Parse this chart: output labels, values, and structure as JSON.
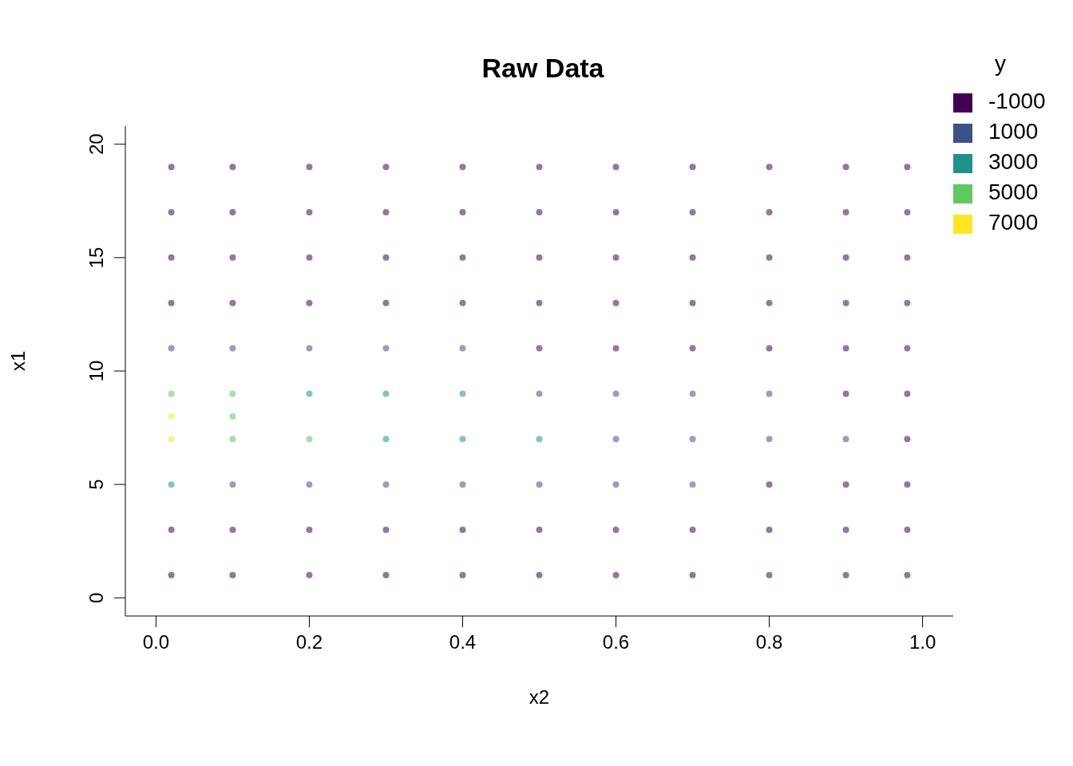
{
  "chart_data": {
    "type": "scatter",
    "title": "Raw Data",
    "xlabel": "x2",
    "ylabel": "x1",
    "legend_title": "y",
    "series": [
      {
        "name": "-1000",
        "color": "#440154",
        "x": [
          0.02,
          0.1,
          0.2,
          0.3,
          0.4,
          0.5,
          0.6,
          0.7,
          0.8,
          0.9,
          0.98,
          0.02,
          0.1,
          0.2,
          0.3,
          0.4,
          0.5,
          0.6,
          0.7,
          0.8,
          0.9,
          0.98,
          0.02,
          0.1,
          0.2,
          0.3,
          0.4,
          0.5,
          0.6,
          0.7,
          0.8,
          0.9,
          0.98,
          0.02,
          0.1,
          0.2,
          0.3,
          0.4,
          0.5,
          0.6,
          0.7,
          0.8,
          0.9,
          0.98,
          0.5,
          0.6,
          0.7,
          0.8,
          0.9,
          0.98,
          0.9,
          0.98,
          0.98,
          0.8,
          0.9,
          0.98,
          0.02,
          0.1,
          0.2,
          0.3,
          0.4,
          0.5,
          0.6,
          0.7,
          0.8,
          0.9,
          0.98,
          0.02,
          0.1,
          0.2,
          0.3,
          0.4,
          0.5,
          0.6,
          0.7,
          0.8,
          0.9,
          0.98
        ],
        "values": [
          19,
          19,
          19,
          19,
          19,
          19,
          19,
          19,
          19,
          19,
          19,
          17,
          17,
          17,
          17,
          17,
          17,
          17,
          17,
          17,
          17,
          17,
          15,
          15,
          15,
          15,
          15,
          15,
          15,
          15,
          15,
          15,
          15,
          13,
          13,
          13,
          13,
          13,
          13,
          13,
          13,
          13,
          13,
          13,
          11,
          11,
          11,
          11,
          11,
          11,
          9,
          9,
          7,
          5,
          5,
          5,
          3,
          3,
          3,
          3,
          3,
          3,
          3,
          3,
          3,
          3,
          3,
          1,
          1,
          1,
          1,
          1,
          1,
          1,
          1,
          1,
          1,
          1
        ]
      },
      {
        "name": "1000",
        "color": "#3b528b",
        "x": [
          0.02,
          0.1,
          0.2,
          0.3,
          0.4,
          0.5,
          0.6,
          0.7,
          0.8,
          0.6,
          0.7,
          0.8,
          0.9,
          0.1,
          0.2,
          0.3,
          0.4,
          0.5,
          0.6,
          0.7
        ],
        "values": [
          11,
          11,
          11,
          11,
          11,
          9,
          9,
          9,
          9,
          7,
          7,
          7,
          7,
          5,
          5,
          5,
          5,
          5,
          5,
          5
        ]
      },
      {
        "name": "3000",
        "color": "#21918c",
        "x": [
          0.2,
          0.3,
          0.4,
          0.3,
          0.4,
          0.5,
          0.02
        ],
        "values": [
          9,
          9,
          9,
          7,
          7,
          7,
          5
        ]
      },
      {
        "name": "5000",
        "color": "#5ec962",
        "x": [
          0.02,
          0.1,
          0.1,
          0.2,
          0.1
        ],
        "values": [
          9,
          9,
          7,
          7,
          8
        ]
      },
      {
        "name": "7000",
        "color": "#fde725",
        "x": [
          0.02,
          0.02
        ],
        "values": [
          7,
          8
        ]
      }
    ],
    "xlim": [
      -0.04,
      1.04
    ],
    "xticks": [
      {
        "value": 0,
        "label": "0.0"
      },
      {
        "value": 0.2,
        "label": "0.2"
      },
      {
        "value": 0.4,
        "label": "0.4"
      },
      {
        "value": 0.6,
        "label": "0.6"
      },
      {
        "value": 0.8,
        "label": "0.8"
      },
      {
        "value": 1,
        "label": "1.0"
      }
    ],
    "ylim": [
      -0.8,
      20.8
    ],
    "yticks": [
      0,
      5,
      10,
      15,
      20
    ],
    "marker": "circle",
    "grid": false,
    "legend": "top right"
  }
}
